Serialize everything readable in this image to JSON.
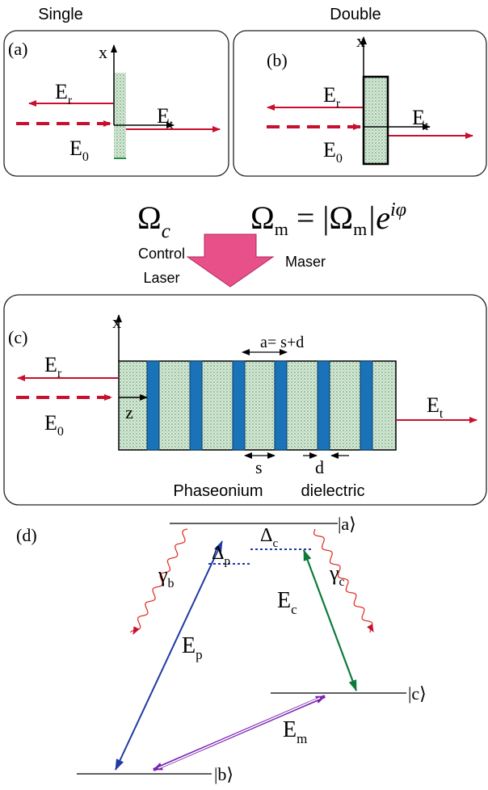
{
  "panel_a": {
    "heading": "Single",
    "tag": "(a)",
    "axis": "x",
    "reflected": {
      "main": "E",
      "sub": "r"
    },
    "transmitted": {
      "main": "E",
      "sub": "t"
    },
    "incident": {
      "main": "E",
      "sub": "0"
    }
  },
  "panel_b": {
    "heading": "Double",
    "tag": "(b)",
    "axis": "x",
    "reflected": {
      "main": "E",
      "sub": "r"
    },
    "transmitted": {
      "main": "E",
      "sub": "t"
    },
    "incident": {
      "main": "E",
      "sub": "0"
    }
  },
  "coupling": {
    "control_symbol": {
      "main": "Ω",
      "sub": "c"
    },
    "control_label": [
      "Control",
      "Laser"
    ],
    "maser_symbol": {
      "lhs": "Ω",
      "lhs_sub": "m",
      "rhs": " = |Ω",
      "rhs_sub": "m",
      "rhs_tail": "|e",
      "exponent": "iφ"
    },
    "maser_label": "Maser"
  },
  "panel_c": {
    "tag": "(c)",
    "axis_x": "x",
    "axis_z": "z",
    "reflected": {
      "main": "E",
      "sub": "r"
    },
    "transmitted": {
      "main": "E",
      "sub": "t"
    },
    "incident": {
      "main": "E",
      "sub": "0"
    },
    "period": "a= s+d",
    "spacer": "s",
    "layer": "d",
    "material_1": "Phaseonium",
    "material_2": "dielectric"
  },
  "panel_d": {
    "tag": "(d)",
    "level_a": "|a⟩",
    "level_b": "|b⟩",
    "level_c": "|c⟩",
    "detuning_p": {
      "main": "Δ",
      "sub": "p"
    },
    "detuning_c": {
      "main": "Δ",
      "sub": "c"
    },
    "decay_b": {
      "main": "γ",
      "sub": "b"
    },
    "decay_c": {
      "main": "γ",
      "sub": "c"
    },
    "probe": {
      "main": "E",
      "sub": "p"
    },
    "control": {
      "main": "E",
      "sub": "c"
    },
    "maser": {
      "main": "E",
      "sub": "m"
    }
  }
}
